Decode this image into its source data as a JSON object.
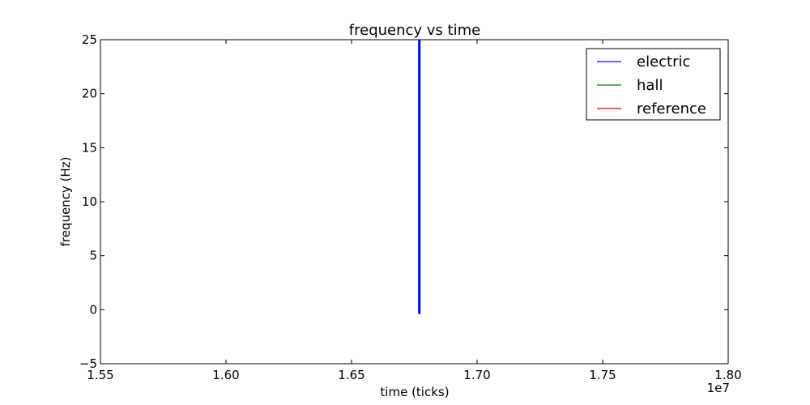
{
  "chart_data": {
    "type": "line",
    "title": "frequency vs time",
    "xlabel": "time (ticks)",
    "ylabel": "frequency (Hz)",
    "x_offset_label": "1e7",
    "xlim": [
      15500000,
      18000000
    ],
    "ylim": [
      -5,
      25
    ],
    "x_ticks": [
      15500000,
      16000000,
      16500000,
      17000000,
      17500000,
      18000000
    ],
    "x_tick_labels": [
      "1.55",
      "1.60",
      "1.65",
      "1.70",
      "1.75",
      "1.80"
    ],
    "y_ticks": [
      -5,
      0,
      5,
      10,
      15,
      20,
      25
    ],
    "y_tick_labels": [
      "−5",
      "0",
      "5",
      "10",
      "15",
      "20",
      "25"
    ],
    "grid": false,
    "legend_position": "top-right",
    "series": [
      {
        "name": "electric",
        "color": "#0000ff",
        "x": [
          16770000,
          16770000
        ],
        "y": [
          -0.3,
          25
        ]
      },
      {
        "name": "hall",
        "color": "#008000",
        "x": [],
        "y": []
      },
      {
        "name": "reference",
        "color": "#ff0000",
        "x": [],
        "y": []
      }
    ]
  }
}
